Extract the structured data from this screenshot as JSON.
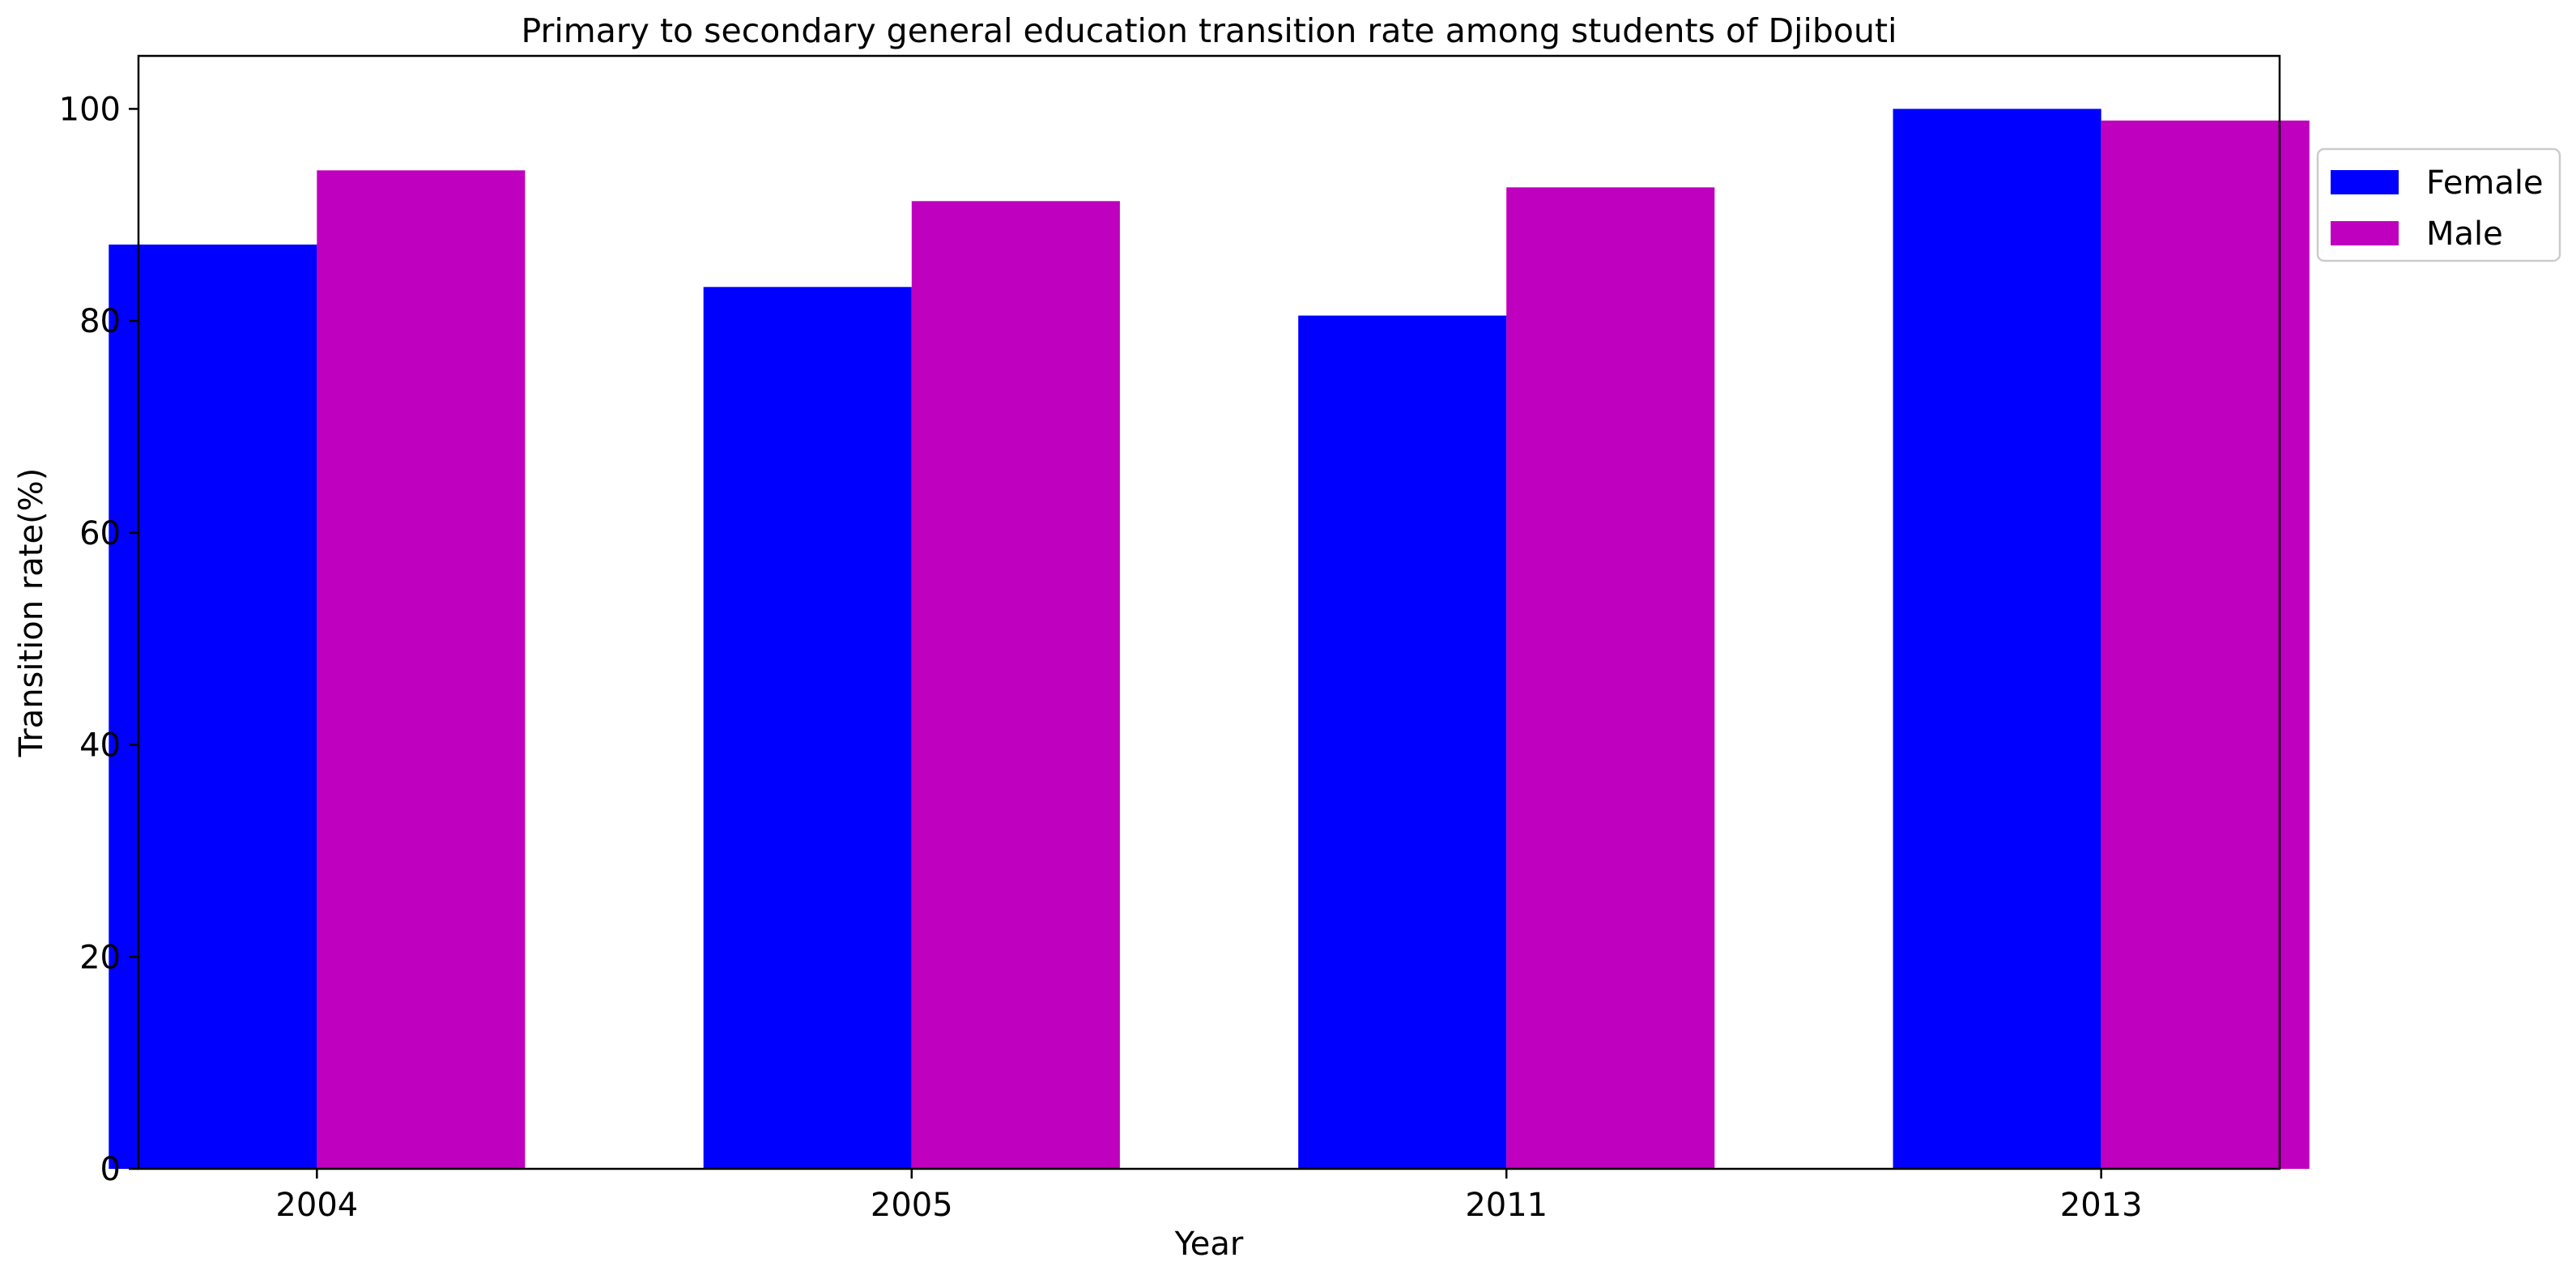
{
  "chart_data": {
    "type": "bar",
    "title": "Primary to secondary general education transition rate among students of Djibouti",
    "xlabel": "Year",
    "ylabel": "Transition rate(%)",
    "categories": [
      "2004",
      "2005",
      "2011",
      "2013"
    ],
    "series": [
      {
        "name": "Female",
        "color": "#0000ff",
        "values": [
          87.2,
          83.2,
          80.5,
          100.0
        ]
      },
      {
        "name": "Male",
        "color": "#bf00bf",
        "values": [
          94.2,
          91.3,
          92.6,
          98.9
        ]
      }
    ],
    "ylim": [
      0,
      105
    ],
    "yticks": [
      0,
      20,
      40,
      60,
      80,
      100
    ],
    "grid": false,
    "legend_position": "outside-right-top"
  }
}
